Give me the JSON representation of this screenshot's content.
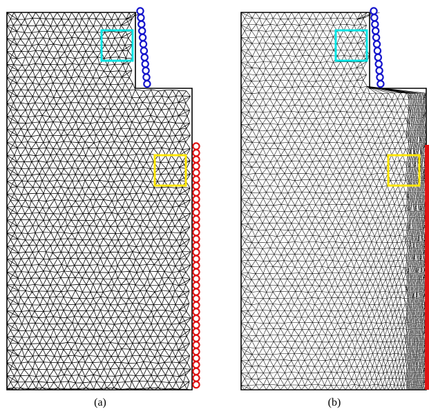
{
  "panels": [
    {
      "caption": "(a)",
      "mesh": "uniform",
      "boundary_left_color": "#1414cc",
      "boundary_right_color": "#e01414",
      "highlight_colors": [
        "#00e5e5",
        "#ffe600"
      ]
    },
    {
      "caption": "(b)",
      "mesh": "refined-near-right-boundary",
      "boundary_left_color": "#1414cc",
      "boundary_right_color": "#e01414",
      "highlight_colors": [
        "#00e5e5",
        "#ffe600"
      ]
    }
  ]
}
